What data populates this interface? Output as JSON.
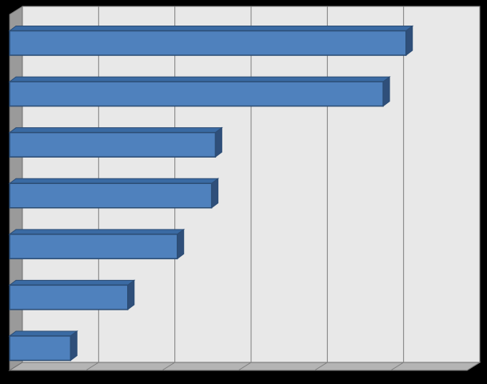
{
  "chart_data": {
    "type": "bar",
    "orientation": "horizontal",
    "style": "3d",
    "categories": [
      "",
      "",
      "",
      "",
      "",
      "",
      ""
    ],
    "values": [
      5.2,
      4.9,
      2.7,
      2.65,
      2.2,
      1.55,
      0.8
    ],
    "xlim": [
      0,
      6
    ],
    "grid": true,
    "legend": "none",
    "title": "",
    "xlabel": "",
    "ylabel": ""
  },
  "colors": {
    "background": "#000000",
    "plot_wall": "#e8e8e8",
    "side_wall": "#9a9a9a",
    "floor": "#b4b4b4",
    "gridline": "#7f7f7f",
    "bar_front": "#4f81bd",
    "bar_top": "#3a6aa3",
    "bar_side": "#2f4f7a",
    "bar_edge": "#2c4d75"
  }
}
